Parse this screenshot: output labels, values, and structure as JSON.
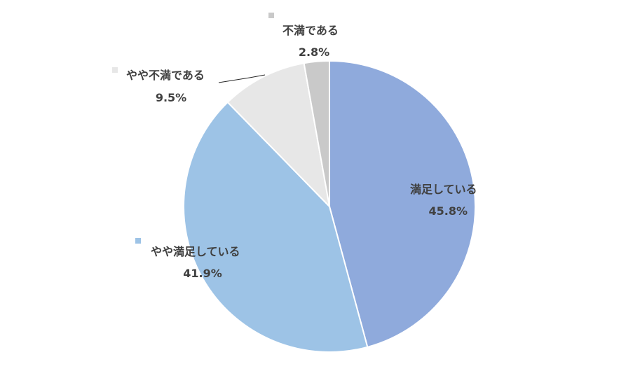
{
  "chart_data": {
    "type": "pie",
    "title": "",
    "slices": [
      {
        "label": "満足している",
        "value": 45.8,
        "display": "45.8%",
        "color": "#8FAADC"
      },
      {
        "label": "やや満足している",
        "value": 41.9,
        "display": "41.9%",
        "color": "#9DC3E6"
      },
      {
        "label": "やや不満である",
        "value": 9.5,
        "display": "9.5%",
        "color": "#E7E7E7"
      },
      {
        "label": "不満である",
        "value": 2.8,
        "display": "2.8%",
        "color": "#C9C9C9"
      }
    ],
    "start": "12 o'clock",
    "direction": "clockwise",
    "label_style": "category name and percentage"
  }
}
